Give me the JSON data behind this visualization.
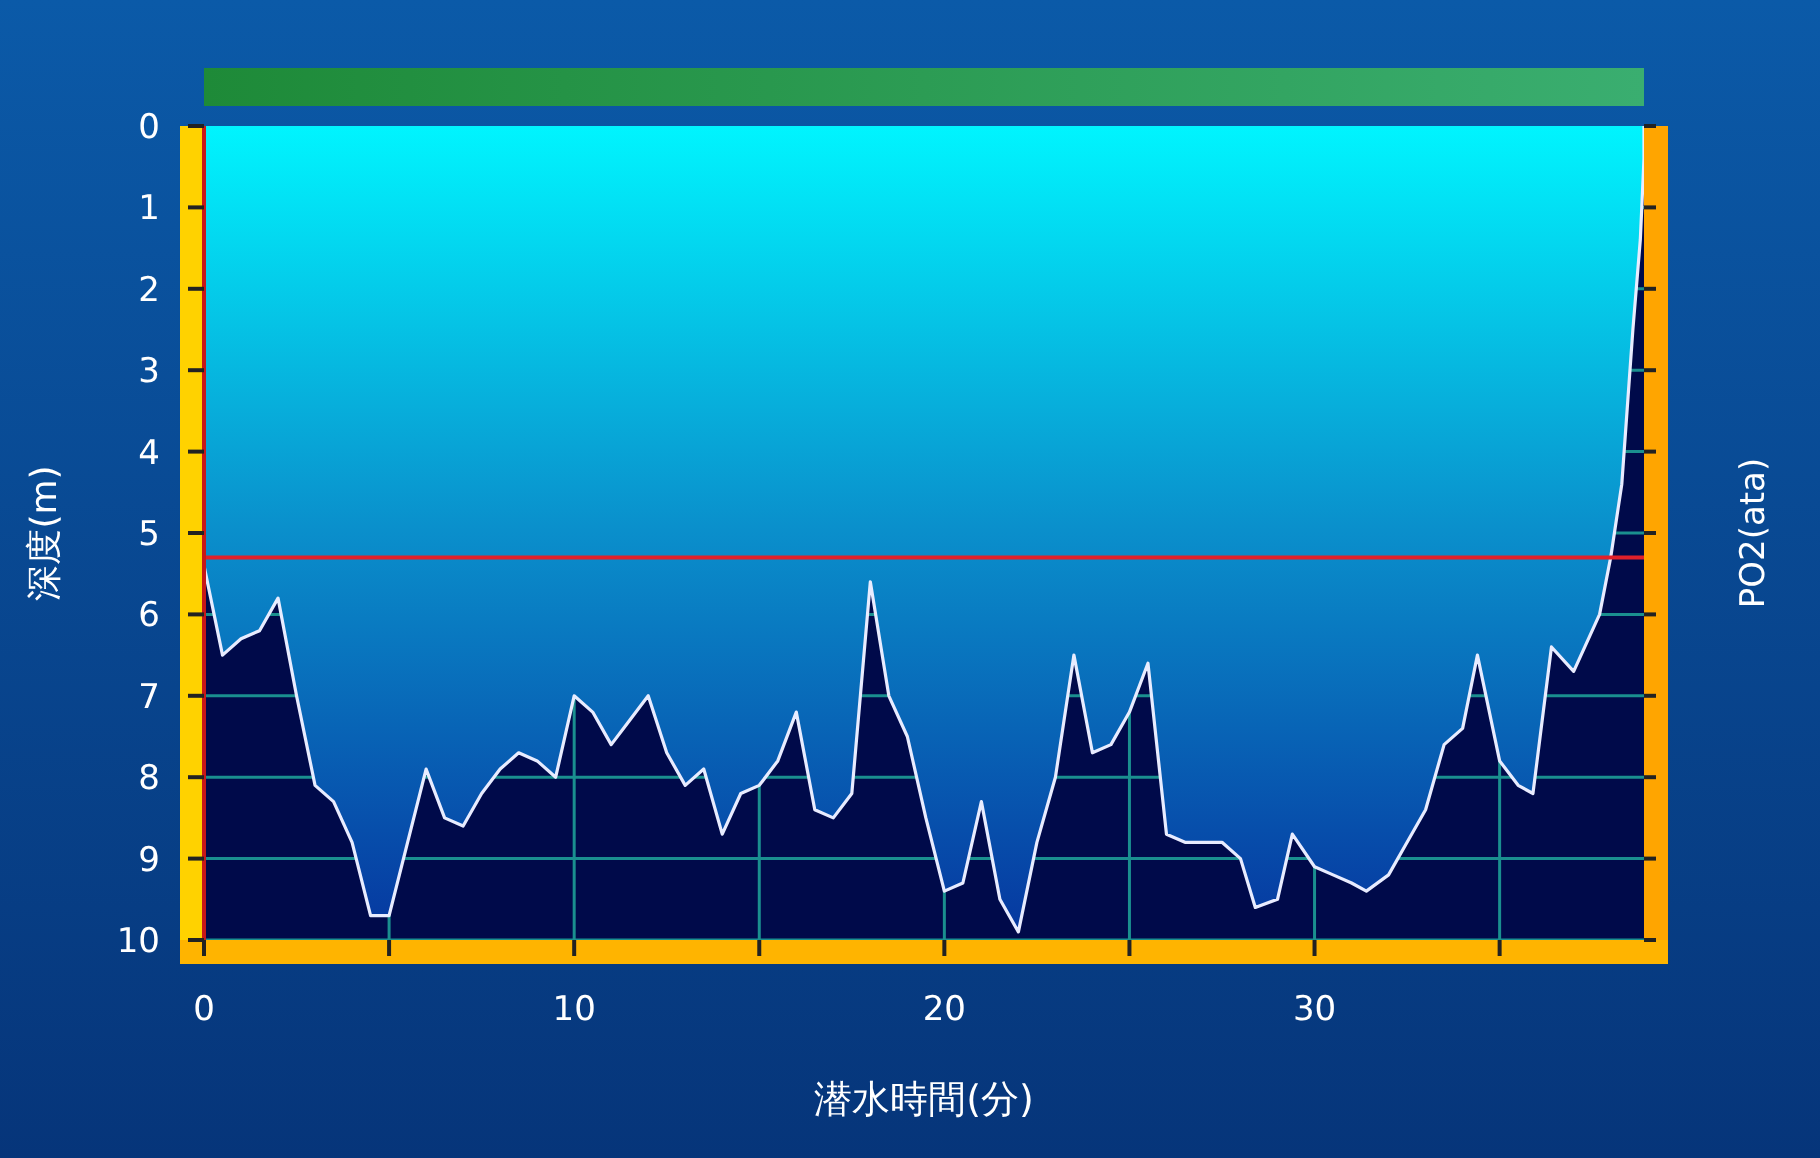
{
  "chart_data": {
    "type": "area",
    "xlabel": "潜水時間(分)",
    "ylabel": "深度(m)",
    "y2label": "PO2(ata)",
    "xlim": [
      0,
      38.9
    ],
    "ylim": [
      10,
      0
    ],
    "xticks": [
      0,
      {
        "value": 5,
        "label": null
      },
      10,
      {
        "value": 15,
        "label": null
      },
      20,
      {
        "value": 25,
        "label": null
      },
      30,
      {
        "value": 35,
        "label": null
      }
    ],
    "yticks": [
      0,
      1,
      2,
      3,
      4,
      5,
      6,
      7,
      8,
      9,
      10
    ],
    "grid": true,
    "ref_lines": [
      {
        "axis": "y",
        "value": 5.3,
        "color": "#e0202a"
      }
    ],
    "series": [
      {
        "color": "#e8ecff",
        "x": [
          0,
          0.5,
          1,
          1.5,
          2,
          2.5,
          3,
          3.5,
          4,
          4.5,
          5,
          5.5,
          6,
          6.5,
          7,
          7.5,
          8,
          8.5,
          9,
          9.5,
          10,
          10.5,
          11,
          11.5,
          12,
          12.5,
          13,
          13.5,
          14,
          14.5,
          15,
          15.5,
          16,
          16.5,
          17,
          17.5,
          18,
          18.5,
          19,
          19.5,
          20,
          20.5,
          21,
          21.5,
          22,
          22.5,
          23,
          23.5,
          24,
          24.5,
          25,
          25.5,
          26,
          26.5,
          27,
          27.5,
          28,
          28.4,
          29,
          29.4,
          30,
          30.5,
          31,
          31.4,
          32,
          32.5,
          33,
          33.5,
          34,
          34.4,
          35,
          35.5,
          35.9,
          36.4,
          37,
          37.7,
          38,
          38.3,
          38.6,
          38.8,
          38.9
        ],
        "values": [
          5.4,
          6.5,
          6.3,
          6.2,
          5.8,
          7.0,
          8.1,
          8.3,
          8.8,
          9.7,
          9.7,
          8.8,
          7.9,
          8.5,
          8.6,
          8.2,
          7.9,
          7.7,
          7.8,
          8.0,
          7.0,
          7.2,
          7.6,
          7.3,
          7.0,
          7.7,
          8.1,
          7.9,
          8.7,
          8.2,
          8.1,
          7.8,
          7.2,
          8.4,
          8.5,
          8.2,
          5.6,
          7.0,
          7.5,
          8.5,
          9.4,
          9.3,
          8.3,
          9.5,
          9.9,
          8.8,
          8.0,
          6.5,
          7.7,
          7.6,
          7.2,
          6.6,
          8.7,
          8.8,
          8.8,
          8.8,
          9.0,
          9.6,
          9.5,
          8.7,
          9.1,
          9.2,
          9.3,
          9.4,
          9.2,
          8.8,
          8.4,
          7.6,
          7.4,
          6.5,
          7.8,
          8.1,
          8.2,
          6.4,
          6.7,
          6.0,
          5.3,
          4.4,
          2.5,
          1.4,
          0.4
        ]
      }
    ]
  }
}
